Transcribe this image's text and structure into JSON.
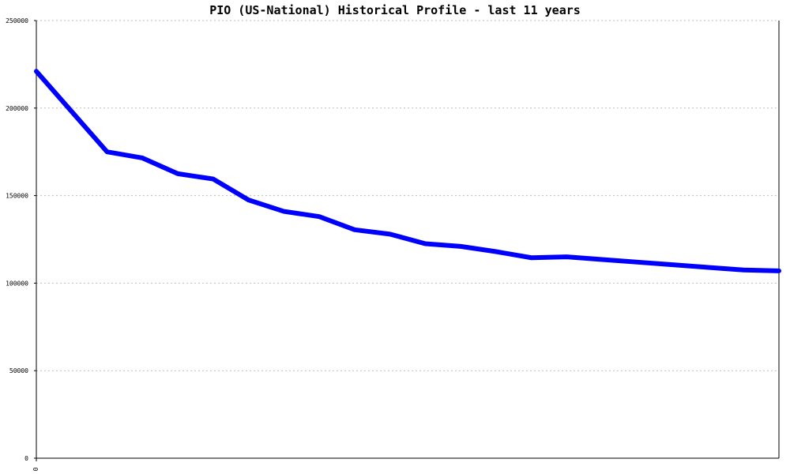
{
  "chart_data": {
    "type": "line",
    "title": "PIO (US-National) Historical Profile - last 11 years",
    "xlabel": "",
    "ylabel": "",
    "ylim": [
      0,
      250000
    ],
    "y_ticks": [
      0,
      50000,
      100000,
      150000,
      200000,
      250000
    ],
    "x_ticks": [
      "0"
    ],
    "grid": true,
    "line_color": "#0000ff",
    "axis_color": "#000000",
    "grid_color": "#bdbdbd",
    "x": [
      0,
      1,
      2,
      3,
      4,
      5,
      6,
      7,
      8,
      9,
      10,
      11,
      12,
      13,
      14,
      15,
      16,
      17,
      18,
      19,
      20,
      21
    ],
    "series": [
      {
        "values": [
          221000,
          198000,
          175000,
          171500,
          162500,
          159500,
          147500,
          141000,
          138000,
          130500,
          128000,
          122500,
          121000,
          118000,
          114500,
          115000,
          113500,
          112000,
          110500,
          109000,
          107500,
          107000
        ]
      }
    ]
  }
}
